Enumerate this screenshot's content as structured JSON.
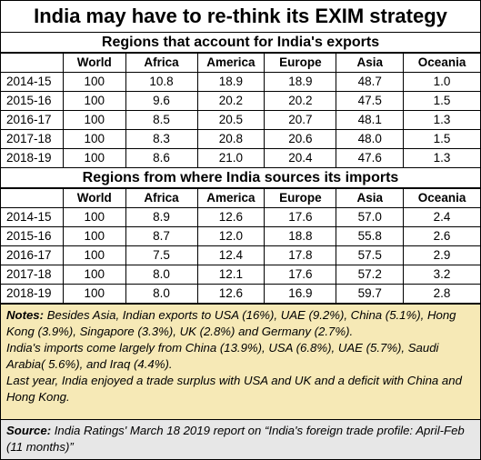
{
  "title": "India may have to re-think its EXIM strategy",
  "exports": {
    "heading": "Regions that account for India's exports",
    "columns": [
      "",
      "World",
      "Africa",
      "America",
      "Europe",
      "Asia",
      "Oceania"
    ],
    "rows": [
      [
        "2014-15",
        "100",
        "10.8",
        "18.9",
        "18.9",
        "48.7",
        "1.0"
      ],
      [
        "2015-16",
        "100",
        "9.6",
        "20.2",
        "20.2",
        "47.5",
        "1.5"
      ],
      [
        "2016-17",
        "100",
        "8.5",
        "20.5",
        "20.7",
        "48.1",
        "1.3"
      ],
      [
        "2017-18",
        "100",
        "8.3",
        "20.8",
        "20.6",
        "48.0",
        "1.5"
      ],
      [
        "2018-19",
        "100",
        "8.6",
        "21.0",
        "20.4",
        "47.6",
        "1.3"
      ]
    ]
  },
  "imports": {
    "heading": "Regions from where India sources its imports",
    "columns": [
      "",
      "World",
      "Africa",
      "America",
      "Europe",
      "Asia",
      "Oceania"
    ],
    "rows": [
      [
        "2014-15",
        "100",
        "8.9",
        "12.6",
        "17.6",
        "57.0",
        "2.4"
      ],
      [
        "2015-16",
        "100",
        "8.7",
        "12.0",
        "18.8",
        "55.8",
        "2.6"
      ],
      [
        "2016-17",
        "100",
        "7.5",
        "12.4",
        "17.8",
        "57.5",
        "2.9"
      ],
      [
        "2017-18",
        "100",
        "8.0",
        "12.1",
        "17.6",
        "57.2",
        "3.2"
      ],
      [
        "2018-19",
        "100",
        "8.0",
        "12.6",
        "16.9",
        "59.7",
        "2.8"
      ]
    ]
  },
  "notes": {
    "label": "Notes:",
    "line1": " Besides Asia, Indian exports to USA (16%), UAE (9.2%), China (5.1%), Hong Kong (3.9%), Singapore (3.3%), UK (2.8%) and Germany (2.7%).",
    "line2": "India's imports come largely from China (13.9%), USA (6.8%), UAE (5.7%), Saudi Arabia( 5.6%), and Iraq (4.4%).",
    "line3": "Last year, India enjoyed a trade surplus with USA and UK and a deficit with China and Hong Kong."
  },
  "source": {
    "label": "Source:",
    "text": "  India Ratings' March 18 2019 report on “India's foreign trade profile: April-Feb (11 months)”"
  }
}
